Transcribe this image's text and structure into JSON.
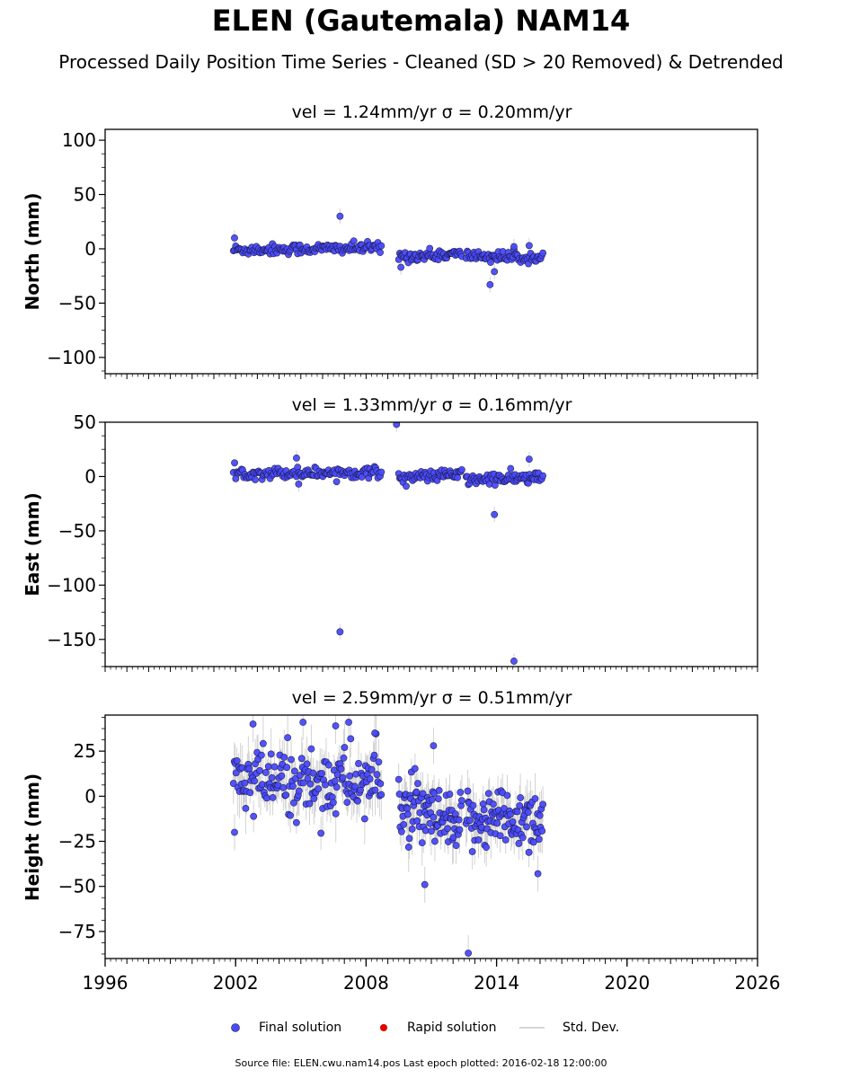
{
  "title": "ELEN (Gautemala) NAM14",
  "subtitle": "Processed Daily Position Time Series - Cleaned (SD > 20 Removed) & Detrended",
  "legend": {
    "final_label": "Final solution",
    "rapid_label": "Rapid solution",
    "std_label": "Std. Dev.",
    "final_color": "#4a4aff",
    "rapid_color": "#e00000",
    "std_color": "#c8c8c8"
  },
  "footer": "Source file: ELEN.cwu.nam14.pos  Last epoch plotted: 2016-02-18 12:00:00",
  "chart_data": [
    {
      "type": "scatter",
      "panel": "north",
      "title": "vel = 1.24mm/yr   σ = 0.20mm/yr",
      "ylabel": "North (mm)",
      "xlim": [
        1996,
        2026
      ],
      "ylim": [
        -115,
        110
      ],
      "yticks": [
        -100,
        -50,
        0,
        50,
        100
      ],
      "ytick_labels": [
        "−100",
        "−50",
        "0",
        "50",
        "100"
      ],
      "segments": [
        {
          "start": 2001.9,
          "end": 2008.7,
          "y_start": -1,
          "y_end": 1,
          "noise": 2.5,
          "n": 130
        },
        {
          "start": 2009.5,
          "end": 2012.4,
          "y_start": -7,
          "y_end": -5,
          "noise": 2.5,
          "n": 60
        },
        {
          "start": 2012.6,
          "end": 2016.13,
          "y_start": -6,
          "y_end": -9,
          "noise": 2.5,
          "n": 70
        }
      ],
      "outliers": [
        [
          2006.8,
          30
        ],
        [
          2013.7,
          -33
        ],
        [
          2013.9,
          -21
        ],
        [
          2014.8,
          2
        ],
        [
          2015.5,
          3
        ],
        [
          2001.95,
          10
        ],
        [
          2009.6,
          -17
        ]
      ]
    },
    {
      "type": "scatter",
      "panel": "east",
      "title": "vel = 1.33mm/yr   σ = 0.16mm/yr",
      "ylabel": "East (mm)",
      "xlim": [
        1996,
        2026
      ],
      "ylim": [
        -175,
        50
      ],
      "yticks": [
        -150,
        -100,
        -50,
        0,
        50
      ],
      "ytick_labels": [
        "−150",
        "−100",
        "−50",
        "0",
        "50"
      ],
      "segments": [
        {
          "start": 2001.9,
          "end": 2008.7,
          "y_start": 3,
          "y_end": 4,
          "noise": 2.5,
          "n": 130
        },
        {
          "start": 2009.5,
          "end": 2012.4,
          "y_start": -1,
          "y_end": 2,
          "noise": 2.5,
          "n": 60
        },
        {
          "start": 2012.6,
          "end": 2016.13,
          "y_start": -3,
          "y_end": -1,
          "noise": 2.8,
          "n": 70
        }
      ],
      "outliers": [
        [
          2009.4,
          48
        ],
        [
          2006.8,
          -143
        ],
        [
          2014.8,
          -170
        ],
        [
          2013.9,
          -35
        ],
        [
          2004.8,
          17
        ],
        [
          2015.5,
          16
        ],
        [
          2004.9,
          -7
        ]
      ]
    },
    {
      "type": "scatter",
      "panel": "height",
      "title": "vel = 2.59mm/yr   σ = 0.51mm/yr",
      "ylabel": "Height (mm)",
      "xlim": [
        1996,
        2026
      ],
      "ylim": [
        -90,
        45
      ],
      "yticks": [
        -75,
        -50,
        -25,
        0,
        25
      ],
      "ytick_labels": [
        "−75",
        "−50",
        "−25",
        "0",
        "25"
      ],
      "xticks": [
        1996,
        2002,
        2008,
        2014,
        2020,
        2026
      ],
      "segments": [
        {
          "start": 2001.9,
          "end": 2008.7,
          "y_start": 8,
          "y_end": 8,
          "noise": 10,
          "n": 170
        },
        {
          "start": 2009.5,
          "end": 2012.4,
          "y_start": -5,
          "y_end": -20,
          "noise": 9,
          "n": 90
        },
        {
          "start": 2012.6,
          "end": 2016.13,
          "y_start": -12,
          "y_end": -12,
          "noise": 9,
          "n": 100
        }
      ],
      "outliers": [
        [
          2012.7,
          -87
        ],
        [
          2010.7,
          -49
        ],
        [
          2001.95,
          -20
        ],
        [
          2002.8,
          40
        ],
        [
          2005.1,
          41
        ],
        [
          2007.2,
          41
        ],
        [
          2008.4,
          35
        ],
        [
          2006.6,
          39
        ],
        [
          2011.1,
          28
        ],
        [
          2015.9,
          -43
        ]
      ]
    }
  ]
}
